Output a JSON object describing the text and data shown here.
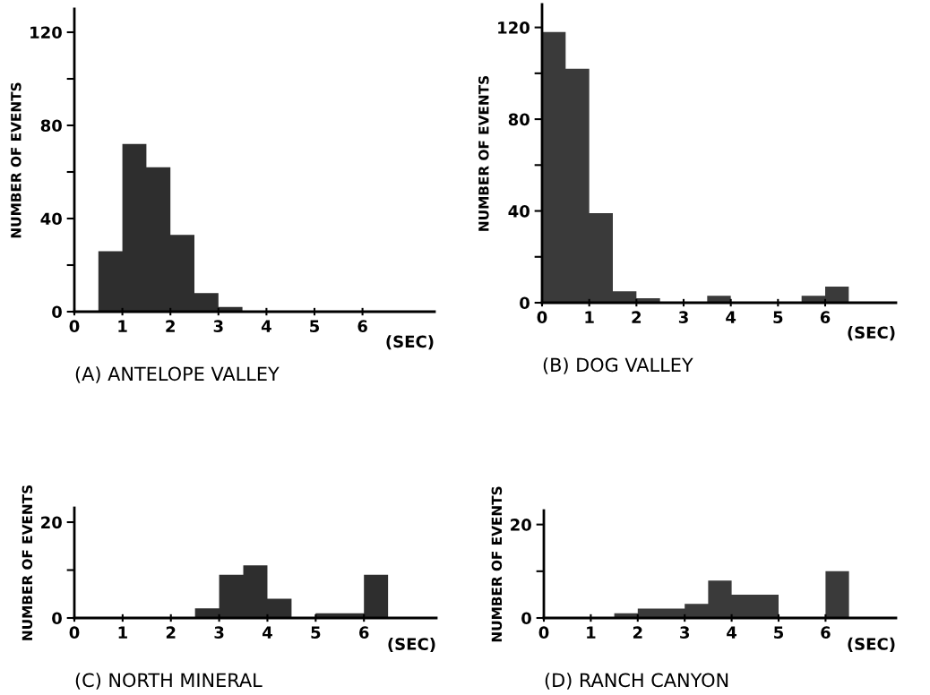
{
  "chart_data": [
    {
      "type": "histogram",
      "title": "(A) ANTELOPE VALLEY",
      "xlabel": "(SEC)",
      "ylabel": "NUMBER OF EVENTS",
      "color": "#2e2e2e",
      "bins": [
        0,
        0.5,
        1,
        1.5,
        2,
        2.5,
        3,
        3.5,
        4,
        4.5,
        5,
        5.5,
        6,
        6.5,
        7
      ],
      "values": [
        0,
        26,
        72,
        62,
        33,
        8,
        2,
        0,
        0,
        0,
        0,
        0,
        0,
        0
      ],
      "xlim": [
        0,
        7.5
      ],
      "xticks": [
        0,
        1,
        2,
        3,
        4,
        5,
        6
      ],
      "ylim": [
        0,
        130
      ],
      "yticks": [
        0,
        {
          "value": 20,
          "label": null
        },
        40,
        {
          "value": 60,
          "label": null
        },
        80,
        {
          "value": 100,
          "label": null
        },
        120
      ]
    },
    {
      "type": "histogram",
      "title": "(B) DOG VALLEY",
      "xlabel": "(SEC)",
      "ylabel": "NUMBER OF EVENTS",
      "color": "#3a3a3a",
      "bins": [
        0,
        0.5,
        1,
        1.5,
        2,
        2.5,
        3,
        3.5,
        4,
        4.5,
        5,
        5.5,
        6,
        6.5,
        7
      ],
      "values": [
        118,
        102,
        39,
        5,
        2,
        0,
        0,
        3,
        0,
        0,
        0,
        3,
        7,
        0
      ],
      "xlim": [
        0,
        7.5
      ],
      "xticks": [
        0,
        1,
        2,
        3,
        4,
        5,
        6
      ],
      "ylim": [
        0,
        130
      ],
      "yticks": [
        0,
        {
          "value": 20,
          "label": null
        },
        40,
        {
          "value": 60,
          "label": null
        },
        80,
        {
          "value": 100,
          "label": null
        },
        120
      ]
    },
    {
      "type": "histogram",
      "title": "(C) NORTH MINERAL",
      "xlabel": "(SEC)",
      "ylabel": "NUMBER OF EVENTS",
      "color": "#2e2e2e",
      "bins": [
        0,
        0.5,
        1,
        1.5,
        2,
        2.5,
        3,
        3.5,
        4,
        4.5,
        5,
        5.5,
        6,
        6.5,
        7
      ],
      "values": [
        0,
        0,
        0,
        0,
        0,
        2,
        9,
        11,
        4,
        0,
        1,
        1,
        9,
        0
      ],
      "xlim": [
        0,
        7.5
      ],
      "xticks": [
        0,
        1,
        2,
        3,
        4,
        5,
        6
      ],
      "ylim": [
        0,
        23
      ],
      "yticks": [
        0,
        {
          "value": 10,
          "label": null
        },
        20
      ]
    },
    {
      "type": "histogram",
      "title": "(D) RANCH CANYON",
      "xlabel": "(SEC)",
      "ylabel": "NUMBER OF EVENTS",
      "color": "#3a3a3a",
      "bins": [
        0,
        0.5,
        1,
        1.5,
        2,
        2.5,
        3,
        3.5,
        4,
        4.5,
        5,
        5.5,
        6,
        6.5,
        7
      ],
      "values": [
        0,
        0,
        0,
        1,
        2,
        2,
        3,
        8,
        5,
        5,
        0,
        0,
        10,
        0
      ],
      "xlim": [
        0,
        7.5
      ],
      "xticks": [
        0,
        1,
        2,
        3,
        4,
        5,
        6
      ],
      "ylim": [
        0,
        23
      ],
      "yticks": [
        0,
        {
          "value": 10,
          "label": null
        },
        20
      ]
    }
  ]
}
